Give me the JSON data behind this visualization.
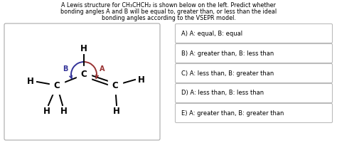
{
  "title_line1": "A Lewis structure for CH₃CHCH₂ is shown below on the left. Predict whether",
  "title_line2": "bonding angles A and B will be equal to, greater than, or less than the ideal",
  "title_line3": "bonding angles according to the VSEPR model.",
  "choices": [
    "A) A: equal, B: equal",
    "B) A: greater than, B: less than",
    "C) A: less than, B: greater than",
    "D) A: less than, B: less than",
    "E) A: greater than, B: greater than"
  ],
  "bg_color": "#ffffff",
  "text_color": "#000000",
  "arrow_A_color": "#993333",
  "arrow_B_color": "#333399"
}
